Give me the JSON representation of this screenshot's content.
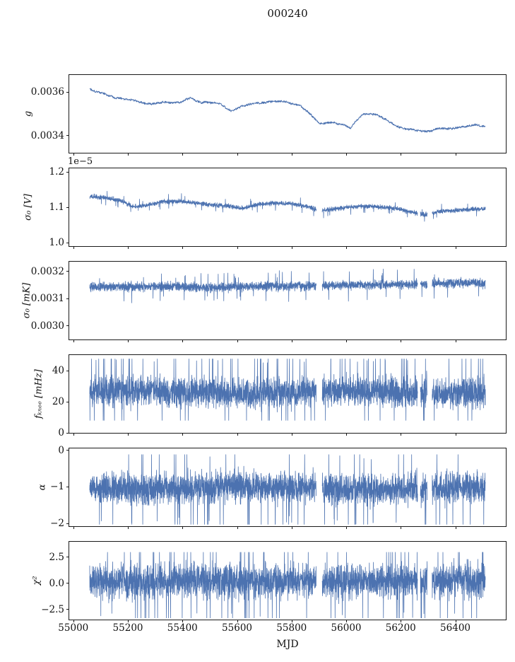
{
  "chart_data": {
    "type": "line",
    "title": "000240",
    "xlabel": "MJD",
    "line_color": "#4c72b0",
    "x_data_range": [
      55060,
      56510
    ],
    "xlim": [
      54985,
      56585
    ],
    "xticks": {
      "values": [
        55000,
        55200,
        55400,
        55600,
        55800,
        56000,
        56200,
        56400
      ],
      "labels": [
        "55000",
        "55200",
        "55400",
        "55600",
        "55800",
        "56000",
        "56200",
        "56400"
      ]
    },
    "gaps": [
      [
        55890,
        55912
      ],
      [
        56262,
        56272
      ],
      [
        56297,
        56315
      ]
    ],
    "subplots": [
      {
        "name": "g",
        "ylabel": "g",
        "style": "smooth",
        "seed": 101,
        "ylim": [
          0.00332,
          0.00368
        ],
        "yticks": {
          "values": [
            0.0036,
            0.0034
          ],
          "labels": [
            "0.0036",
            "0.0034"
          ]
        },
        "n": 1300,
        "walk_step": 2e-06,
        "decay": 0.98,
        "jitter": 9e-06,
        "anchors": [
          [
            55060,
            0.003615
          ],
          [
            55100,
            0.003602
          ],
          [
            55150,
            0.003578
          ],
          [
            55200,
            0.003568
          ],
          [
            55250,
            0.003556
          ],
          [
            55285,
            0.003547
          ],
          [
            55330,
            0.003559
          ],
          [
            55390,
            0.003556
          ],
          [
            55430,
            0.003576
          ],
          [
            55470,
            0.003552
          ],
          [
            55530,
            0.003548
          ],
          [
            55580,
            0.003514
          ],
          [
            55620,
            0.003535
          ],
          [
            55670,
            0.003551
          ],
          [
            55720,
            0.003554
          ],
          [
            55780,
            0.003552
          ],
          [
            55830,
            0.003541
          ],
          [
            55870,
            0.003499
          ],
          [
            55905,
            0.003453
          ],
          [
            55950,
            0.003459
          ],
          [
            55990,
            0.003447
          ],
          [
            56015,
            0.003428
          ],
          [
            56060,
            0.003498
          ],
          [
            56110,
            0.003501
          ],
          [
            56150,
            0.003474
          ],
          [
            56185,
            0.003443
          ],
          [
            56225,
            0.003428
          ],
          [
            56265,
            0.00342
          ],
          [
            56300,
            0.003414
          ],
          [
            56340,
            0.003429
          ],
          [
            56380,
            0.003425
          ],
          [
            56430,
            0.003442
          ],
          [
            56470,
            0.003453
          ],
          [
            56510,
            0.003448
          ]
        ]
      },
      {
        "name": "sigma0_V",
        "ylabel": "σ₀ [V]",
        "offset_text": "1e−5",
        "y_unit_multiplier": 1e-05,
        "style": "band",
        "seed": 202,
        "ylim": [
          0.99,
          1.21
        ],
        "yticks": {
          "values": [
            1.2,
            1.1,
            1.0
          ],
          "labels": [
            "1.2",
            "1.1",
            "1.0"
          ]
        },
        "n": 3200,
        "amp": 0.009,
        "spike_p": 0.02,
        "spike_up": 0.3,
        "clamp": [
          1.05,
          1.165
        ],
        "anchors": [
          [
            55060,
            1.13
          ],
          [
            55120,
            1.127
          ],
          [
            55180,
            1.117
          ],
          [
            55220,
            1.101
          ],
          [
            55270,
            1.107
          ],
          [
            55330,
            1.116
          ],
          [
            55390,
            1.117
          ],
          [
            55450,
            1.112
          ],
          [
            55510,
            1.106
          ],
          [
            55570,
            1.103
          ],
          [
            55620,
            1.097
          ],
          [
            55680,
            1.108
          ],
          [
            55740,
            1.112
          ],
          [
            55800,
            1.11
          ],
          [
            55850,
            1.103
          ],
          [
            55900,
            1.091
          ],
          [
            55950,
            1.094
          ],
          [
            56010,
            1.101
          ],
          [
            56070,
            1.103
          ],
          [
            56130,
            1.1
          ],
          [
            56190,
            1.096
          ],
          [
            56240,
            1.086
          ],
          [
            56290,
            1.079
          ],
          [
            56340,
            1.088
          ],
          [
            56400,
            1.091
          ],
          [
            56460,
            1.094
          ],
          [
            56510,
            1.095
          ]
        ]
      },
      {
        "name": "sigma0_mK",
        "ylabel": "σ₀ [mK]",
        "style": "band",
        "seed": 303,
        "ylim": [
          0.00295,
          0.003235
        ],
        "yticks": {
          "values": [
            0.0032,
            0.0031,
            0.003
          ],
          "labels": [
            "0.0032",
            "0.0031",
            "0.0030"
          ]
        },
        "n": 3200,
        "amp": 2.4e-05,
        "spike_p": 0.02,
        "spike_up": 0.5,
        "clamp": [
          0.003052,
          0.003228
        ],
        "anchors": [
          [
            55060,
            0.003142
          ],
          [
            55300,
            0.003145
          ],
          [
            55500,
            0.00314
          ],
          [
            55700,
            0.003145
          ],
          [
            55900,
            0.003147
          ],
          [
            56100,
            0.00315
          ],
          [
            56250,
            0.003153
          ],
          [
            56400,
            0.003158
          ],
          [
            56510,
            0.003156
          ]
        ]
      },
      {
        "name": "fknee",
        "ylabel": "fₖₙₑₑ [mHz]",
        "style": "band",
        "seed": 404,
        "ylim": [
          0,
          50
        ],
        "yticks": {
          "values": [
            40,
            20,
            0
          ],
          "labels": [
            "40",
            "20",
            "0"
          ]
        },
        "n": 3200,
        "amp": 14,
        "spike_p": 0.04,
        "spike_up": 0.7,
        "clamp": [
          8,
          47.5
        ],
        "anchors": [
          [
            55060,
            26
          ],
          [
            55200,
            27
          ],
          [
            55400,
            26
          ],
          [
            55600,
            25
          ],
          [
            55800,
            26
          ],
          [
            56000,
            27
          ],
          [
            56200,
            26
          ],
          [
            56400,
            26
          ],
          [
            56510,
            26
          ]
        ]
      },
      {
        "name": "alpha",
        "ylabel": "α",
        "style": "band",
        "seed": 505,
        "ylim": [
          -2.07,
          0.05
        ],
        "yticks": {
          "values": [
            0,
            -1,
            -2
          ],
          "labels": [
            "0",
            "−1",
            "−2"
          ]
        },
        "n": 3200,
        "amp": 0.6,
        "spike_p": 0.03,
        "spike_up": 0.35,
        "clamp": [
          -2.02,
          -0.12
        ],
        "anchors": [
          [
            55060,
            -1.06
          ],
          [
            55400,
            -1.05
          ],
          [
            55600,
            -0.98
          ],
          [
            55800,
            -1.0
          ],
          [
            56000,
            -1.06
          ],
          [
            56200,
            -1.05
          ],
          [
            56510,
            -1.0
          ]
        ]
      },
      {
        "name": "chi2",
        "ylabel": "χ²",
        "style": "band",
        "seed": 606,
        "ylim": [
          -3.45,
          3.95
        ],
        "yticks": {
          "values": [
            2.5,
            0.0,
            -2.5
          ],
          "labels": [
            "2.5",
            "0.0",
            "−2.5"
          ]
        },
        "n": 3200,
        "amp": 2.3,
        "spike_p": 0.03,
        "spike_up": 0.5,
        "clamp": [
          -3.3,
          2.95
        ],
        "anchors": [
          [
            55060,
            0.2
          ],
          [
            55500,
            0.28
          ],
          [
            56000,
            0.2
          ],
          [
            56510,
            0.3
          ]
        ]
      }
    ]
  }
}
